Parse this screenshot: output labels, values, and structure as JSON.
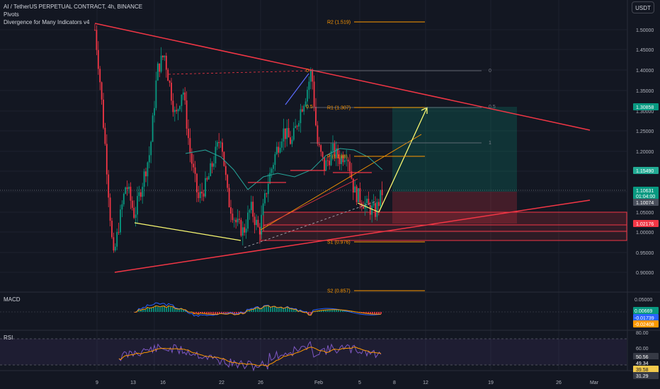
{
  "legend": {
    "symbol": "AI / TetherUS PERPETUAL CONTRACT, 4h, BINANCE",
    "indicator1": "Pivots",
    "indicator2": "Divergence for Many Indicators v4"
  },
  "currency_button": "USDT",
  "price_axis": {
    "ticks": [
      "1.50000",
      "1.45000",
      "1.40000",
      "1.35000",
      "1.30000",
      "1.25000",
      "1.20000",
      "1.15000",
      "1.10000",
      "1.05000",
      "1.00000",
      "0.95000",
      "0.90000"
    ],
    "badges": [
      {
        "text": "1.30858",
        "color": "#089981"
      },
      {
        "text": "1.15490",
        "color": "#22ab94"
      },
      {
        "text": "1.10631",
        "color": "#089981"
      },
      {
        "text": "01:04:00",
        "color": "#089981"
      },
      {
        "text": "1.10074",
        "color": "#4a4f5c"
      },
      {
        "text": "1.02176",
        "color": "#f23645"
      }
    ]
  },
  "pivots": [
    {
      "text": "R2 (1.519)"
    },
    {
      "text": "R1 (1.307)"
    },
    {
      "text": "P (1.188)"
    },
    {
      "text": "S1 (0.976)"
    },
    {
      "text": "S2 (0.857)"
    }
  ],
  "fib_labels": [
    "0",
    "0.5",
    "1"
  ],
  "fib_left_labels": [
    "0",
    "0.5"
  ],
  "macd": {
    "label": "MACD",
    "ticks": [
      "0.05000"
    ],
    "badges": [
      {
        "text": "0.00669",
        "color": "#089981"
      },
      {
        "text": "-0.01739",
        "color": "#2962ff"
      },
      {
        "text": "-0.02408",
        "color": "#ff9800"
      }
    ]
  },
  "rsi": {
    "label": "RSI",
    "ticks": [
      "80.00",
      "60.00"
    ],
    "badges": [
      {
        "text": "50.56",
        "color": "#363a45"
      },
      {
        "text": "49.34",
        "color": "#131722"
      },
      {
        "text": "39.58",
        "color": "#f2c94c"
      },
      {
        "text": "31.29",
        "color": "#363a45"
      }
    ]
  },
  "time_axis": [
    "9",
    "13",
    "16",
    "22",
    "26",
    "Feb",
    "5",
    "8",
    "12",
    "19",
    "26",
    "Mar"
  ],
  "colors": {
    "up": "#089981",
    "down": "#f23645",
    "background": "#131722",
    "grid": "#1e222d",
    "trendline": "#f23645",
    "arrow": "#f9f871",
    "macd": "#2962ff",
    "signal": "#ff9800",
    "rsi": "#7e57c2"
  }
}
